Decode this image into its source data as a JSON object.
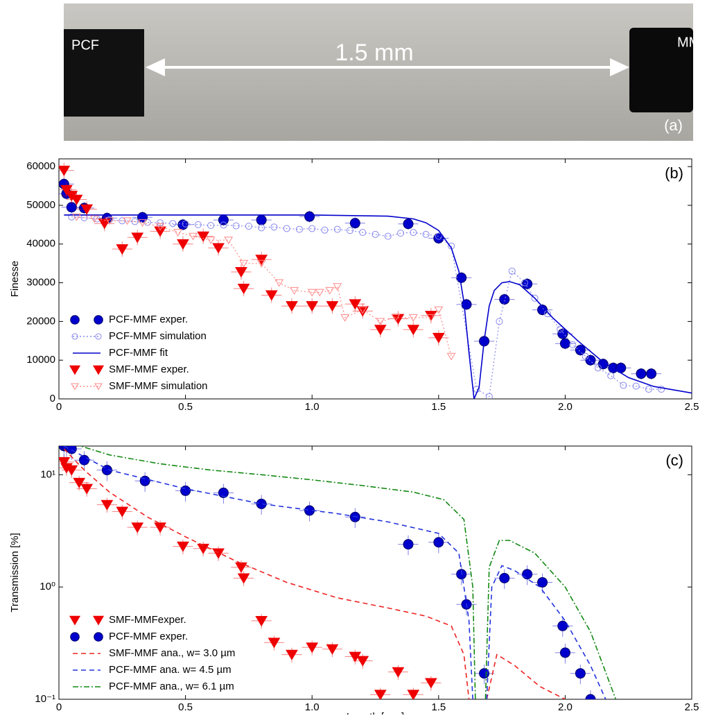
{
  "photo": {
    "left_label": "PCF",
    "right_label": "MM",
    "distance": "1.5 mm",
    "panel": "(a)"
  },
  "chart_data": [
    {
      "type": "line",
      "panel": "(b)",
      "ylabel": "Finesse",
      "legend": "lower left",
      "xlim": [
        0,
        2.5
      ],
      "xticks": [
        0,
        0.5,
        {
          "value": 1,
          "label": "1.0"
        },
        1.5,
        {
          "value": 2,
          "label": "2.0"
        },
        2.5
      ],
      "ylim": [
        0,
        62000
      ],
      "yticks": [
        0,
        10000,
        20000,
        30000,
        40000,
        50000,
        60000
      ],
      "series": [
        {
          "name": "PCF-MMF exper.",
          "color": "#0000cc",
          "marker": "circle",
          "filled": true,
          "line": "none",
          "xerr": 0.04,
          "yerr": 1500,
          "x": [
            0.02,
            0.03,
            0.05,
            0.1,
            0.19,
            0.33,
            0.49,
            0.65,
            0.8,
            0.99,
            1.17,
            1.38,
            1.5,
            1.59,
            1.61,
            1.68,
            1.76,
            1.85,
            1.91,
            1.99,
            2.0,
            2.06,
            2.1,
            2.15,
            2.19,
            2.22,
            2.3,
            2.34
          ],
          "values": [
            55500,
            53000,
            49500,
            49300,
            46700,
            46900,
            45000,
            46200,
            46200,
            47100,
            45400,
            45200,
            41500,
            31300,
            24400,
            14900,
            25700,
            29700,
            23000,
            16800,
            14300,
            12600,
            10000,
            9000,
            8000,
            8000,
            6500,
            6500
          ]
        },
        {
          "name": "PCF-MMF simulation",
          "color": "#8888ee",
          "marker": "circle",
          "filled": false,
          "line": "dotted",
          "x": [
            0.05,
            0.1,
            0.15,
            0.2,
            0.25,
            0.3,
            0.35,
            0.4,
            0.45,
            0.5,
            0.55,
            0.6,
            0.65,
            0.7,
            0.75,
            0.8,
            0.85,
            0.9,
            0.95,
            1.0,
            1.05,
            1.1,
            1.15,
            1.2,
            1.25,
            1.3,
            1.35,
            1.4,
            1.45,
            1.5,
            1.55,
            1.65,
            1.7,
            1.74,
            1.79,
            1.84,
            1.88,
            1.93,
            1.98,
            2.03,
            2.08,
            2.13,
            2.18,
            2.23,
            2.28,
            2.33,
            2.38
          ],
          "values": [
            47000,
            46800,
            46500,
            46300,
            46000,
            45800,
            45600,
            45500,
            45300,
            45200,
            45000,
            44800,
            44900,
            44700,
            44600,
            44200,
            44400,
            44000,
            43800,
            44000,
            43600,
            43800,
            43500,
            43000,
            42500,
            42000,
            42800,
            43000,
            42500,
            42000,
            39500,
            2500,
            600,
            20000,
            33000,
            30000,
            26000,
            22000,
            18000,
            14000,
            11000,
            8000,
            6000,
            3500,
            3300,
            2500,
            2500
          ]
        },
        {
          "name": "PCF-MMF fit",
          "color": "#0000cc",
          "marker": "none",
          "line": "solid",
          "x": [
            0.02,
            0.5,
            1.0,
            1.3,
            1.4,
            1.45,
            1.5,
            1.55,
            1.58,
            1.6,
            1.62,
            1.64,
            1.66,
            1.68,
            1.7,
            1.72,
            1.75,
            1.78,
            1.82,
            1.88,
            1.95,
            2.05,
            2.15,
            2.25,
            2.35,
            2.5
          ],
          "values": [
            47500,
            47500,
            47500,
            47200,
            46500,
            45500,
            43500,
            39000,
            33000,
            25000,
            12000,
            0,
            3000,
            15000,
            24000,
            28000,
            30000,
            30300,
            29500,
            26000,
            21000,
            15000,
            9500,
            5500,
            3200,
            1500
          ]
        },
        {
          "name": "SMF-MMF exper.",
          "color": "#ee0000",
          "marker": "triangle",
          "filled": true,
          "line": "none",
          "xerr": 0.04,
          "yerr": 2000,
          "x": [
            0.02,
            0.03,
            0.05,
            0.07,
            0.11,
            0.18,
            0.25,
            0.31,
            0.4,
            0.49,
            0.57,
            0.63,
            0.72,
            0.73,
            0.8,
            0.84,
            0.92,
            1.0,
            1.08,
            1.17,
            1.2,
            1.27,
            1.34,
            1.4,
            1.47,
            1.5
          ],
          "values": [
            59000,
            54000,
            52500,
            51500,
            49000,
            45300,
            38700,
            41700,
            43300,
            40000,
            42000,
            39000,
            32800,
            28500,
            36000,
            26800,
            24000,
            24000,
            24000,
            24500,
            22700,
            17900,
            20700,
            17900,
            21500,
            15800
          ]
        },
        {
          "name": "SMF-MMF simulation",
          "color": "#ff8888",
          "marker": "triangle",
          "filled": false,
          "line": "dotted",
          "x": [
            0.07,
            0.14,
            0.2,
            0.27,
            0.33,
            0.4,
            0.47,
            0.53,
            0.6,
            0.67,
            0.73,
            0.8,
            0.87,
            0.93,
            1.0,
            1.03,
            1.07,
            1.1,
            1.13,
            1.2,
            1.27,
            1.33,
            1.4,
            1.47,
            1.5,
            1.55
          ],
          "values": [
            47000,
            46500,
            46000,
            46000,
            45500,
            44500,
            43000,
            42000,
            41000,
            41000,
            35000,
            35000,
            30000,
            28000,
            27500,
            27500,
            28000,
            29000,
            21000,
            23000,
            20000,
            21000,
            21000,
            21000,
            23000,
            11000
          ]
        }
      ]
    },
    {
      "type": "line",
      "panel": "(c)",
      "ylabel": "Transmission [%]",
      "xlabel": "Length [mm]",
      "legend": "lower left",
      "yscale": "log",
      "xlim": [
        0,
        2.5
      ],
      "xticks": [
        0,
        0.5,
        {
          "value": 1,
          "label": "1.0"
        },
        1.5,
        {
          "value": 2,
          "label": "2.0"
        },
        2.5
      ],
      "ylim": [
        0.1,
        18
      ],
      "yticks": [
        {
          "value": 0.1,
          "label": "10⁻¹"
        },
        {
          "value": 1,
          "label": "10⁰"
        },
        {
          "value": 10,
          "label": "10¹"
        }
      ],
      "series": [
        {
          "name": "SMF-MMFexper.",
          "color": "#ee0000",
          "marker": "triangle",
          "filled": true,
          "line": "none",
          "xerr": 0.04,
          "yerr": 0.15,
          "x": [
            0.02,
            0.03,
            0.05,
            0.08,
            0.11,
            0.19,
            0.25,
            0.31,
            0.4,
            0.49,
            0.57,
            0.63,
            0.72,
            0.73,
            0.8,
            0.85,
            0.92,
            1.0,
            1.08,
            1.17,
            1.2,
            1.27,
            1.34,
            1.4,
            1.47
          ],
          "values": [
            13,
            11.5,
            11,
            8.5,
            7.5,
            5.4,
            4.7,
            3.4,
            3.4,
            2.3,
            2.2,
            2.0,
            1.5,
            1.2,
            0.5,
            0.32,
            0.25,
            0.29,
            0.28,
            0.24,
            0.22,
            0.11,
            0.175,
            0.11,
            0.14
          ]
        },
        {
          "name": "PCF-MMF exper.",
          "color": "#0000cc",
          "marker": "circle",
          "filled": true,
          "line": "none",
          "xerr": 0.04,
          "yerr": 0.2,
          "x": [
            0.02,
            0.03,
            0.05,
            0.1,
            0.19,
            0.34,
            0.5,
            0.65,
            0.8,
            0.99,
            1.17,
            1.38,
            1.5,
            1.59,
            1.61,
            1.68,
            1.76,
            1.85,
            1.91,
            1.99,
            2.0,
            2.06,
            2.1
          ],
          "values": [
            18,
            18,
            17,
            13.5,
            11,
            8.8,
            7.2,
            6.9,
            5.5,
            4.8,
            4.2,
            2.4,
            2.5,
            1.3,
            0.7,
            0.17,
            1.2,
            1.3,
            1.1,
            0.45,
            0.26,
            0.17,
            0.1
          ]
        },
        {
          "name": "SMF-MMF ana.,  w= 3.0 µm",
          "color": "#ee2222",
          "marker": "none",
          "line": "dashed",
          "x": [
            0.02,
            0.1,
            0.2,
            0.35,
            0.5,
            0.7,
            0.9,
            1.1,
            1.3,
            1.45,
            1.55,
            1.6,
            1.62,
            1.65,
            1.69,
            1.73,
            1.8,
            1.9,
            2.0
          ],
          "values": [
            17,
            11,
            7,
            4.2,
            2.8,
            1.7,
            1.1,
            0.8,
            0.65,
            0.55,
            0.45,
            0.25,
            0.1,
            null,
            0.1,
            0.25,
            0.2,
            0.13,
            0.1
          ]
        },
        {
          "name": "PCF-MMF ana.   w= 4.5 µm",
          "color": "#2233dd",
          "marker": "none",
          "line": "dashed",
          "x": [
            0.02,
            0.2,
            0.5,
            0.8,
            1.1,
            1.3,
            1.5,
            1.58,
            1.62,
            1.635,
            1.66,
            1.69,
            1.71,
            1.75,
            1.8,
            1.9,
            2.0,
            2.1,
            2.16
          ],
          "values": [
            18,
            11,
            7.5,
            5.5,
            4.5,
            3.8,
            3,
            2,
            0.5,
            0.1,
            null,
            0.1,
            1,
            1.55,
            1.4,
            1,
            0.5,
            0.2,
            0.1
          ]
        },
        {
          "name": "PCF-MMF ana., w= 6.1 µm",
          "color": "#118811",
          "marker": "none",
          "line": "dashdot",
          "x": [
            0.02,
            0.2,
            0.4,
            0.6,
            0.8,
            1.0,
            1.2,
            1.4,
            1.52,
            1.6,
            1.635,
            1.645,
            1.665,
            1.685,
            1.7,
            1.74,
            1.78,
            1.88,
            2.0,
            2.1,
            2.2
          ],
          "values": [
            20,
            15,
            12.5,
            11,
            10,
            9,
            8,
            7,
            6,
            4,
            1,
            0.1,
            null,
            0.1,
            1.5,
            2.6,
            2.6,
            2,
            1,
            0.4,
            0.1
          ]
        }
      ]
    }
  ]
}
